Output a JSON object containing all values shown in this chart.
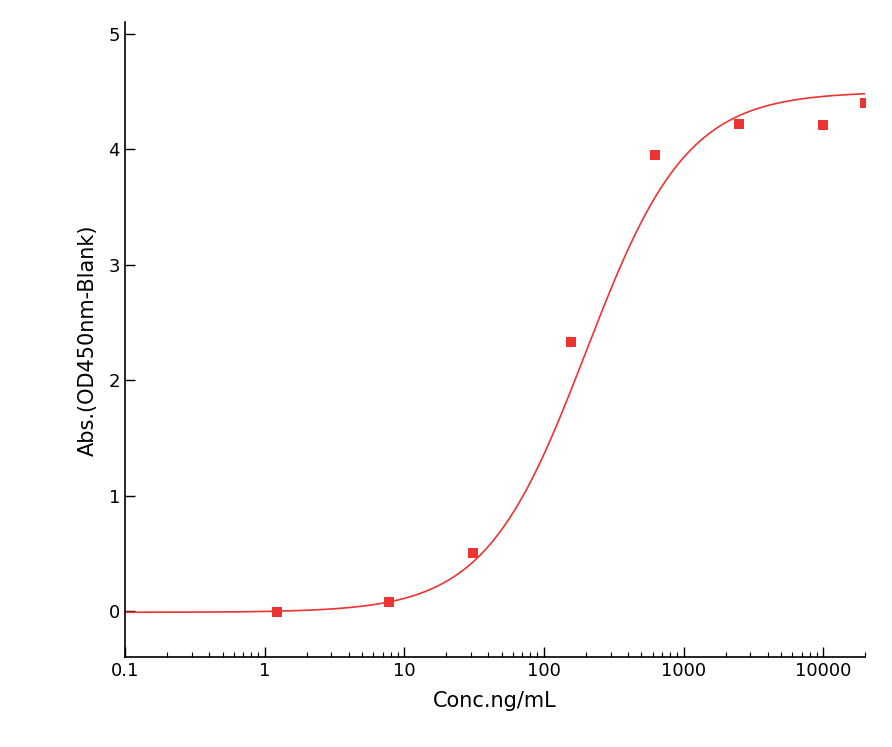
{
  "x_data": [
    1.23,
    7.8,
    31.25,
    156.25,
    625,
    2500,
    10000,
    20000
  ],
  "y_data": [
    -0.01,
    0.08,
    0.5,
    2.33,
    3.95,
    4.22,
    4.21,
    4.4
  ],
  "xlabel": "Conc.ng/mL",
  "ylabel": "Abs.(OD450nm-Blank)",
  "xlim_log": [
    0.1,
    20000
  ],
  "ylim": [
    -0.4,
    5.1
  ],
  "yticks": [
    0,
    1,
    2,
    3,
    4,
    5
  ],
  "xticks": [
    0.1,
    1,
    10,
    100,
    1000,
    10000
  ],
  "color": "#EE3333",
  "marker": "s",
  "marker_size": 7,
  "line_width": 1.2,
  "background_color": "#FFFFFF",
  "label_fontsize": 15,
  "tick_fontsize": 13
}
